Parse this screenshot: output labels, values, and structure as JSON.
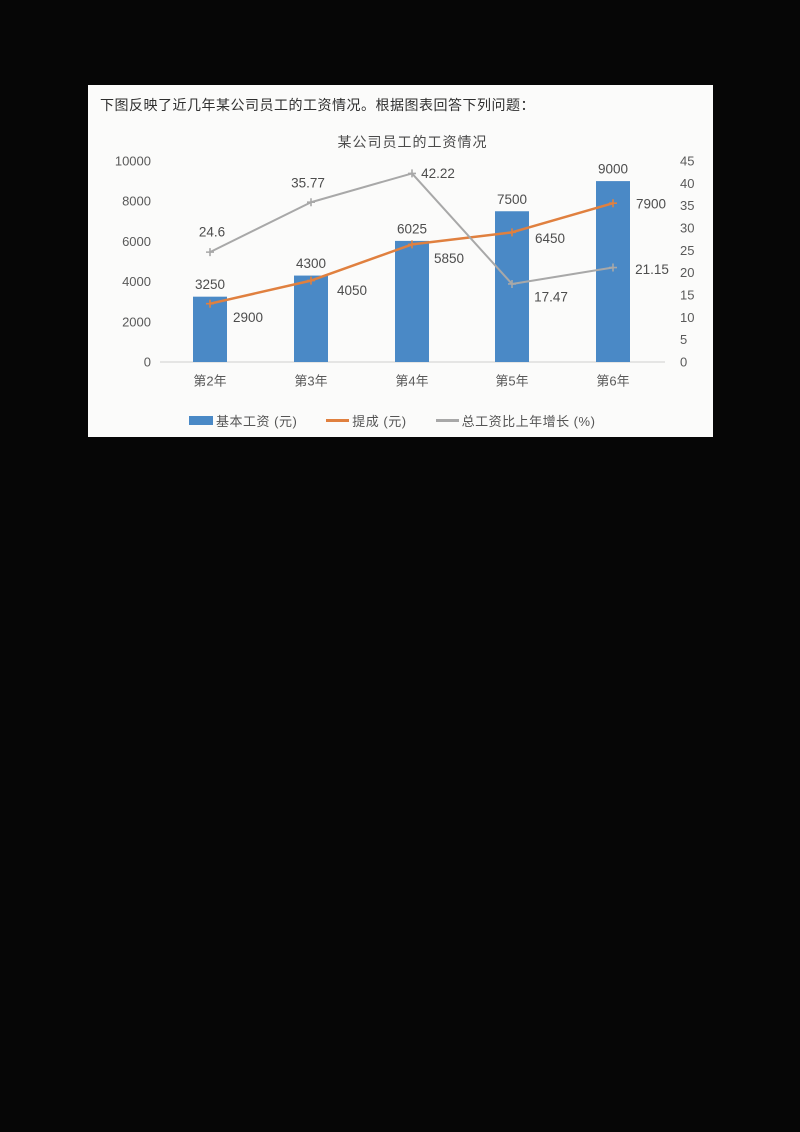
{
  "page": {
    "background_color": "#060606",
    "card_color": "#fbfbfa"
  },
  "header": {
    "instruction": "下图反映了近几年某公司员工的工资情况。根据图表回答下列问题："
  },
  "chart_data": {
    "type": "combo",
    "title": "某公司员工的工资情况",
    "categories": [
      "第2年",
      "第3年",
      "第4年",
      "第5年",
      "第6年"
    ],
    "series": [
      {
        "name": "基本工资 (元)",
        "type": "bar",
        "axis": "left",
        "color": "#4a89c6",
        "values": [
          3250,
          4300,
          6025,
          7500,
          9000
        ]
      },
      {
        "name": "提成 (元)",
        "type": "line",
        "axis": "left",
        "color": "#e0803f",
        "values": [
          2900,
          4050,
          5850,
          6450,
          7900
        ]
      },
      {
        "name": "总工资比上年增长 (%)",
        "type": "line",
        "axis": "right",
        "color": "#a8a8a8",
        "values": [
          24.6,
          35.77,
          42.22,
          17.47,
          21.15
        ]
      }
    ],
    "left_axis": {
      "ticks": [
        0,
        2000,
        4000,
        6000,
        8000,
        10000
      ],
      "min": 0,
      "max": 10000
    },
    "right_axis": {
      "ticks": [
        0,
        5,
        10,
        15,
        20,
        25,
        30,
        35,
        40,
        45
      ],
      "min": 0,
      "max": 45
    },
    "grid": false,
    "data_labels": true,
    "legend_position": "bottom",
    "axis_text_color": "#595959",
    "label_text_color": "#4d4d4d",
    "axis_line_color": "#cfcfcf"
  }
}
